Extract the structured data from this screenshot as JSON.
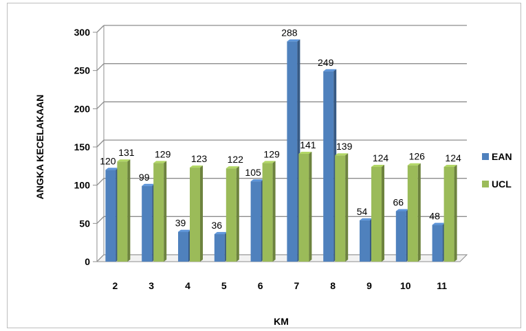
{
  "chart_data": {
    "type": "bar",
    "title": "",
    "xlabel": "KM",
    "ylabel": "ANGKA KECELAKAAN",
    "categories": [
      "2",
      "3",
      "4",
      "5",
      "6",
      "7",
      "8",
      "9",
      "10",
      "11"
    ],
    "series": [
      {
        "name": "EAN",
        "values": [
          120,
          99,
          39,
          36,
          105,
          288,
          249,
          54,
          66,
          48
        ],
        "color": "#4f81bd"
      },
      {
        "name": "UCL",
        "values": [
          131,
          129,
          123,
          122,
          129,
          141,
          139,
          124,
          126,
          124
        ],
        "color": "#9bbb59"
      }
    ],
    "ylim": [
      0,
      300
    ],
    "yticks": [
      "0",
      "50",
      "100",
      "150",
      "200",
      "250",
      "300"
    ],
    "grid": true,
    "legend": "right",
    "style": "3d-clustered-column"
  }
}
